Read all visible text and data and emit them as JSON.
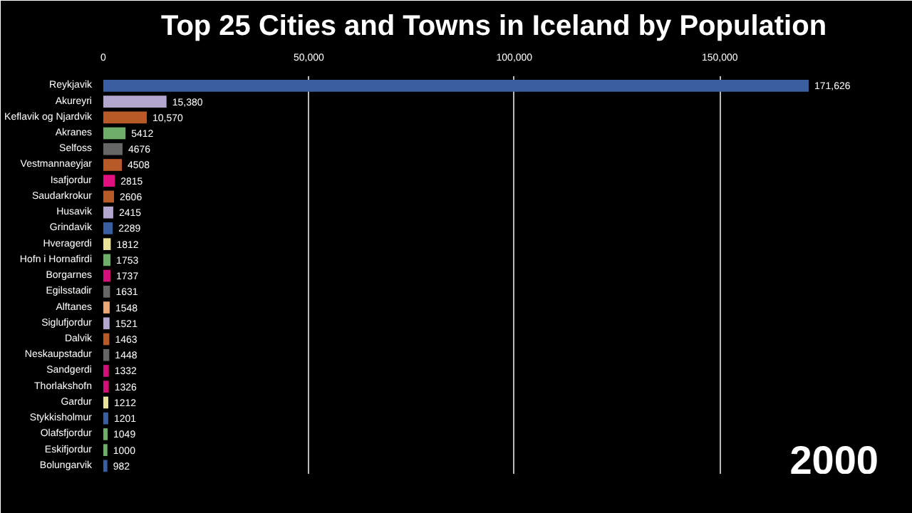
{
  "chart_data": {
    "type": "bar",
    "orientation": "horizontal",
    "title": "Top 25 Cities and Towns in Iceland by Population",
    "categories": [
      "Reykjavik",
      "Akureyri",
      "Keflavik og Njardvik",
      "Akranes",
      "Selfoss",
      "Vestmannaeyjar",
      "Isafjordur",
      "Saudarkrokur",
      "Husavik",
      "Grindavik",
      "Hveragerdi",
      "Hofn i Hornafirdi",
      "Borgarnes",
      "Egilsstadir",
      "Alftanes",
      "Siglufjordur",
      "Dalvik",
      "Neskaupstadur",
      "Sandgerdi",
      "Thorlakshofn",
      "Gardur",
      "Stykkisholmur",
      "Olafsfjordur",
      "Eskifjordur",
      "Bolungarvik"
    ],
    "values": [
      171626,
      15380,
      10570,
      5412,
      4676,
      4508,
      2815,
      2606,
      2415,
      2289,
      1812,
      1753,
      1737,
      1631,
      1548,
      1521,
      1463,
      1448,
      1332,
      1326,
      1212,
      1201,
      1049,
      1000,
      982
    ],
    "value_labels": [
      "171,626",
      "15,380",
      "10,570",
      "5412",
      "4676",
      "4508",
      "2815",
      "2606",
      "2415",
      "2289",
      "1812",
      "1753",
      "1737",
      "1631",
      "1548",
      "1521",
      "1463",
      "1448",
      "1332",
      "1326",
      "1212",
      "1201",
      "1049",
      "1000",
      "982"
    ],
    "colors": [
      "#3a5fa0",
      "#b3a6cf",
      "#b85a28",
      "#6fae6a",
      "#666666",
      "#b85a28",
      "#e0117f",
      "#b85a28",
      "#b3a6cf",
      "#3a5fa0",
      "#e8e29a",
      "#6fae6a",
      "#d0117a",
      "#666666",
      "#e8a878",
      "#b3a6cf",
      "#b85a28",
      "#666666",
      "#d0117a",
      "#d0117a",
      "#e8e29a",
      "#3a5fa0",
      "#6fae6a",
      "#6fae6a",
      "#3a5fa0"
    ],
    "xlim": [
      0,
      190000
    ],
    "xticks": [
      0,
      {
        "value": 50000,
        "label": "50,000"
      },
      {
        "value": 100000,
        "label": "100,000"
      },
      {
        "value": 150000,
        "label": "150,000"
      }
    ],
    "grid": "x",
    "annotations": [
      "2000"
    ]
  }
}
